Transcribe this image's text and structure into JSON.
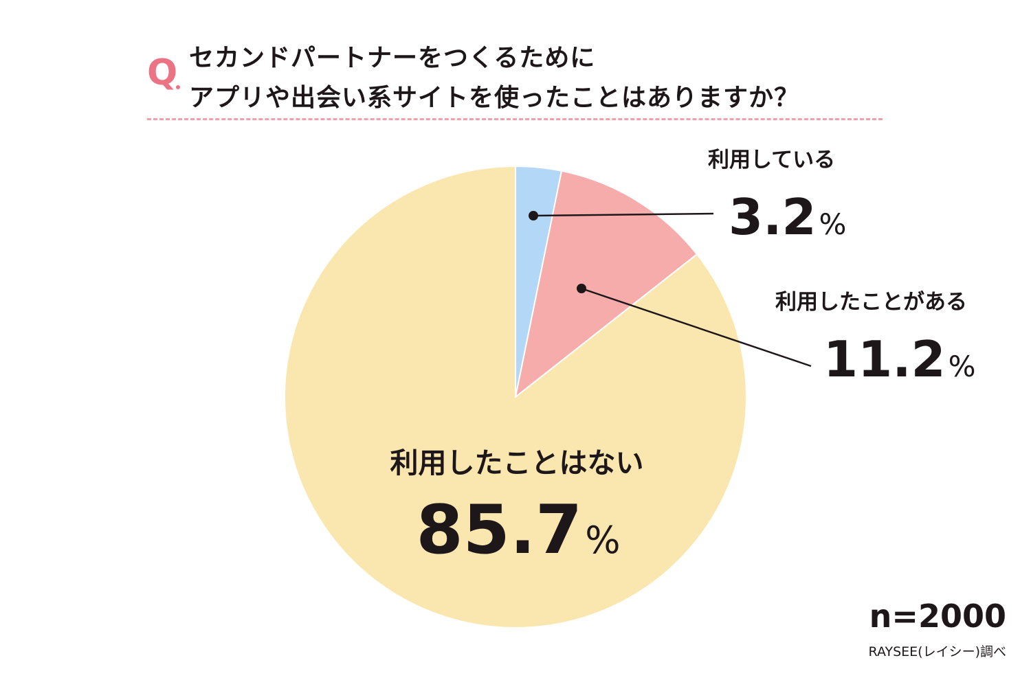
{
  "question": {
    "mark": "Q",
    "line1": "セカンドパートナーをつくるために",
    "line2": "アプリや出会い系サイトを使ったことはありますか？"
  },
  "chart_data": {
    "type": "pie",
    "title": "セカンドパートナーをつくるためにアプリや出会い系サイトを使ったことはありますか？",
    "unit": "%",
    "slices": [
      {
        "label": "利用している",
        "value": 3.2,
        "value_text": "3.2",
        "color": "#b3d8f7"
      },
      {
        "label": "利用したことがある",
        "value": 11.2,
        "value_text": "11.2",
        "color": "#f7acac"
      },
      {
        "label": "利用したことはない",
        "value": 85.7,
        "value_text": "85.7",
        "color": "#fae7b0"
      }
    ]
  },
  "sample": "n=2000",
  "source": "RAYSEE(レイシー)調べ",
  "colors": {
    "accent": "#ec7384",
    "dash": "#f2a0ab",
    "text": "#1e1719"
  }
}
